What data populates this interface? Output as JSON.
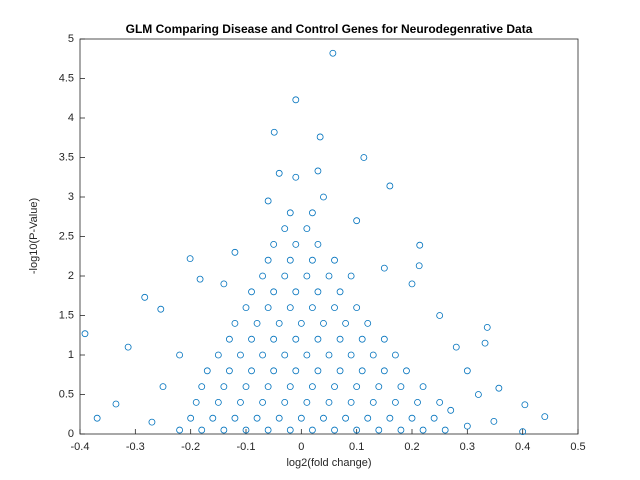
{
  "chart_data": {
    "type": "scatter",
    "title": "GLM Comparing Disease and Control Genes for Neurodegenrative Data",
    "x_label": "log2(fold change)",
    "y_label": "-log10(P-Value)",
    "xlim": [
      -0.4,
      0.5
    ],
    "ylim": [
      0,
      5
    ],
    "xticks": [
      -0.4,
      -0.3,
      -0.2,
      -0.1,
      0,
      0.1,
      0.2,
      0.3,
      0.4,
      0.5
    ],
    "yticks": [
      0,
      0.5,
      1,
      1.5,
      2,
      2.5,
      3,
      3.5,
      4,
      4.5,
      5
    ],
    "grid": false,
    "series": [
      {
        "color": "#0072bd",
        "x": [
          0.057,
          -0.01,
          -0.049,
          0.034,
          0.113,
          0.16,
          -0.201,
          -0.183,
          -0.391,
          -0.369,
          -0.313,
          -0.283,
          -0.254,
          0.214,
          0.213,
          0.336,
          0.332,
          0.357,
          0.404,
          0.44,
          0.4,
          0.348,
          -0.335,
          -0.06,
          0.04,
          -0.04,
          0.03,
          -0.01,
          0.1,
          -0.12,
          0.15,
          0.2,
          -0.14,
          0.25,
          0.28,
          0.3,
          -0.22,
          -0.25,
          0.32,
          0.27,
          -0.27,
          0.3,
          -0.22,
          -0.18,
          -0.14,
          -0.1,
          -0.06,
          -0.02,
          0.02,
          0.06,
          0.1,
          0.14,
          0.18,
          0.22,
          0.26,
          -0.2,
          -0.16,
          -0.12,
          -0.08,
          -0.04,
          0,
          0.04,
          0.08,
          0.12,
          0.16,
          0.2,
          0.24,
          -0.19,
          -0.15,
          -0.11,
          -0.07,
          -0.03,
          0.01,
          0.05,
          0.09,
          0.13,
          0.17,
          0.21,
          0.25,
          -0.18,
          -0.14,
          -0.1,
          -0.06,
          -0.02,
          0.02,
          0.06,
          0.1,
          0.14,
          0.18,
          0.22,
          -0.17,
          -0.13,
          -0.09,
          -0.05,
          -0.01,
          0.03,
          0.07,
          0.11,
          0.15,
          0.19,
          -0.15,
          -0.11,
          -0.07,
          -0.03,
          0.01,
          0.05,
          0.09,
          0.13,
          0.17,
          -0.13,
          -0.09,
          -0.05,
          -0.01,
          0.03,
          0.07,
          0.11,
          0.15,
          -0.12,
          -0.08,
          -0.04,
          0,
          0.04,
          0.08,
          0.12,
          -0.1,
          -0.06,
          -0.02,
          0.02,
          0.06,
          0.1,
          -0.09,
          -0.05,
          -0.01,
          0.03,
          0.07,
          -0.07,
          -0.03,
          0.01,
          0.05,
          0.09,
          -0.06,
          -0.02,
          0.02,
          0.06,
          -0.05,
          -0.01,
          0.03,
          -0.03,
          0.01,
          -0.02,
          0.02
        ],
        "y": [
          4.82,
          4.23,
          3.82,
          3.76,
          3.5,
          3.14,
          2.22,
          1.96,
          1.27,
          0.2,
          1.1,
          1.73,
          1.58,
          2.39,
          2.13,
          1.35,
          1.15,
          0.58,
          0.37,
          0.22,
          0.03,
          0.16,
          0.38,
          2.95,
          3.0,
          3.3,
          3.33,
          3.25,
          2.7,
          2.3,
          2.1,
          1.9,
          1.9,
          1.5,
          1.1,
          0.8,
          1.0,
          0.6,
          0.5,
          0.3,
          0.15,
          0.1,
          0.05,
          0.05,
          0.05,
          0.05,
          0.05,
          0.05,
          0.05,
          0.05,
          0.05,
          0.05,
          0.05,
          0.05,
          0.05,
          0.2,
          0.2,
          0.2,
          0.2,
          0.2,
          0.2,
          0.2,
          0.2,
          0.2,
          0.2,
          0.2,
          0.2,
          0.4,
          0.4,
          0.4,
          0.4,
          0.4,
          0.4,
          0.4,
          0.4,
          0.4,
          0.4,
          0.4,
          0.4,
          0.6,
          0.6,
          0.6,
          0.6,
          0.6,
          0.6,
          0.6,
          0.6,
          0.6,
          0.6,
          0.6,
          0.8,
          0.8,
          0.8,
          0.8,
          0.8,
          0.8,
          0.8,
          0.8,
          0.8,
          0.8,
          1.0,
          1.0,
          1.0,
          1.0,
          1.0,
          1.0,
          1.0,
          1.0,
          1.0,
          1.2,
          1.2,
          1.2,
          1.2,
          1.2,
          1.2,
          1.2,
          1.2,
          1.4,
          1.4,
          1.4,
          1.4,
          1.4,
          1.4,
          1.4,
          1.6,
          1.6,
          1.6,
          1.6,
          1.6,
          1.6,
          1.8,
          1.8,
          1.8,
          1.8,
          1.8,
          2.0,
          2.0,
          2.0,
          2.0,
          2.0,
          2.2,
          2.2,
          2.2,
          2.2,
          2.4,
          2.4,
          2.4,
          2.6,
          2.6,
          2.8,
          2.8
        ]
      }
    ]
  }
}
